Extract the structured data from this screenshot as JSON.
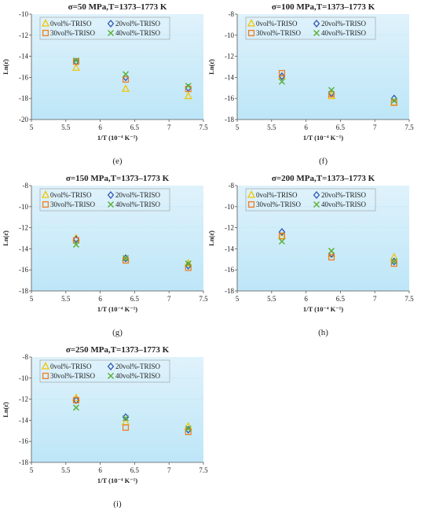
{
  "colors": {
    "series": [
      "#f2c500",
      "#2e55b8",
      "#ef7d22",
      "#5cb13b"
    ],
    "plot_bg_top": "#dff2fb",
    "plot_bg_bottom": "#bde6f8",
    "grid": "#c9e8f7"
  },
  "chart_data": [
    {
      "type": "scatter",
      "title": "σ=50 MPa,T=1373–1773 K",
      "xlabel": "1/T (10⁻⁴ K⁻¹)",
      "ylabel": "Ln(ε̇)",
      "xlim": [
        5,
        7.5
      ],
      "ylim": [
        -20,
        -10
      ],
      "xticks": [
        5,
        5.5,
        6,
        6.5,
        7,
        7.5
      ],
      "yticks": [
        -20,
        -18,
        -16,
        -14,
        -12,
        -10
      ],
      "legend_position": "top-left",
      "caption": "(e)",
      "series": [
        {
          "name": "0vol%-TRISO",
          "marker": "triangle",
          "x": [
            5.65,
            6.37,
            7.28
          ],
          "y": [
            -15.1,
            -17.1,
            -17.8
          ]
        },
        {
          "name": "20vol%-TRISO",
          "marker": "diamond",
          "x": [
            5.65,
            6.37,
            7.28
          ],
          "y": [
            -14.5,
            -16.0,
            -17.0
          ]
        },
        {
          "name": "30vol%-TRISO",
          "marker": "square",
          "x": [
            5.65,
            6.37,
            7.28
          ],
          "y": [
            -14.5,
            -16.2,
            -17.1
          ]
        },
        {
          "name": "40vol%-TRISO",
          "marker": "x",
          "x": [
            5.65,
            6.37,
            7.28
          ],
          "y": [
            -14.4,
            -15.7,
            -16.8
          ]
        }
      ]
    },
    {
      "type": "scatter",
      "title": "σ=100 MPa,T=1373–1773 K",
      "xlabel": "1/T (10⁻⁴ K⁻¹)",
      "ylabel": "Ln(ε̇)",
      "xlim": [
        5,
        7.5
      ],
      "ylim": [
        -18,
        -8
      ],
      "xticks": [
        5,
        5.5,
        6,
        6.5,
        7,
        7.5
      ],
      "yticks": [
        -18,
        -16,
        -14,
        -12,
        -10,
        -8
      ],
      "legend_position": "top-left",
      "caption": "(f)",
      "series": [
        {
          "name": "0vol%-TRISO",
          "marker": "triangle",
          "x": [
            5.65,
            6.37,
            7.28
          ],
          "y": [
            -13.9,
            -15.8,
            -16.4
          ]
        },
        {
          "name": "20vol%-TRISO",
          "marker": "diamond",
          "x": [
            5.65,
            6.37,
            7.28
          ],
          "y": [
            -13.9,
            -15.5,
            -16.0
          ]
        },
        {
          "name": "30vol%-TRISO",
          "marker": "square",
          "x": [
            5.65,
            6.37,
            7.28
          ],
          "y": [
            -13.6,
            -15.6,
            -16.4
          ]
        },
        {
          "name": "40vol%-TRISO",
          "marker": "x",
          "x": [
            5.65,
            6.37,
            7.28
          ],
          "y": [
            -14.4,
            -15.2,
            -16.2
          ]
        }
      ]
    },
    {
      "type": "scatter",
      "title": "σ=150 MPa,T=1373–1773 K",
      "xlabel": "1/T (10⁻⁴ K⁻¹)",
      "ylabel": "Ln(ε̇)",
      "xlim": [
        5,
        7.5
      ],
      "ylim": [
        -18,
        -8
      ],
      "xticks": [
        5,
        5.5,
        6,
        6.5,
        7,
        7.5
      ],
      "yticks": [
        -18,
        -16,
        -14,
        -12,
        -10,
        -8
      ],
      "legend_position": "top-left",
      "caption": "(g)",
      "series": [
        {
          "name": "0vol%-TRISO",
          "marker": "triangle",
          "x": [
            5.65,
            6.37,
            7.28
          ],
          "y": [
            -13.0,
            -14.9,
            -15.4
          ]
        },
        {
          "name": "20vol%-TRISO",
          "marker": "diamond",
          "x": [
            5.65,
            6.37,
            7.28
          ],
          "y": [
            -13.1,
            -14.9,
            -15.6
          ]
        },
        {
          "name": "30vol%-TRISO",
          "marker": "square",
          "x": [
            5.65,
            6.37,
            7.28
          ],
          "y": [
            -13.2,
            -15.1,
            -15.8
          ]
        },
        {
          "name": "40vol%-TRISO",
          "marker": "x",
          "x": [
            5.65,
            6.37,
            7.28
          ],
          "y": [
            -13.6,
            -14.9,
            -15.4
          ]
        }
      ]
    },
    {
      "type": "scatter",
      "title": "σ=200 MPa,T=1373–1773 K",
      "xlabel": "1/T (10⁻⁴ K⁻¹)",
      "ylabel": "Ln(ε̇)",
      "xlim": [
        5,
        7.5
      ],
      "ylim": [
        -18,
        -8
      ],
      "xticks": [
        5,
        5.5,
        6,
        6.5,
        7,
        7.5
      ],
      "yticks": [
        -18,
        -16,
        -14,
        -12,
        -10,
        -8
      ],
      "legend_position": "top-left",
      "caption": "(h)",
      "series": [
        {
          "name": "0vol%-TRISO",
          "marker": "triangle",
          "x": [
            5.65,
            6.37,
            7.28
          ],
          "y": [
            -12.8,
            -14.5,
            -14.8
          ]
        },
        {
          "name": "20vol%-TRISO",
          "marker": "diamond",
          "x": [
            5.65,
            6.37,
            7.28
          ],
          "y": [
            -12.4,
            -14.5,
            -15.2
          ]
        },
        {
          "name": "30vol%-TRISO",
          "marker": "square",
          "x": [
            5.65,
            6.37,
            7.28
          ],
          "y": [
            -12.8,
            -14.8,
            -15.4
          ]
        },
        {
          "name": "40vol%-TRISO",
          "marker": "x",
          "x": [
            5.65,
            6.37,
            7.28
          ],
          "y": [
            -13.3,
            -14.2,
            -15.2
          ]
        }
      ]
    },
    {
      "type": "scatter",
      "title": "σ=250 MPa,T=1373–1773 K",
      "xlabel": "1/T (10⁻⁴ K⁻¹)",
      "ylabel": "Ln(ε̇)",
      "xlim": [
        5,
        7.5
      ],
      "ylim": [
        -18,
        -8
      ],
      "xticks": [
        5,
        5.5,
        6,
        6.5,
        7,
        7.5
      ],
      "yticks": [
        -18,
        -16,
        -14,
        -12,
        -10,
        -8
      ],
      "legend_position": "top-left",
      "caption": "(i)",
      "series": [
        {
          "name": "0vol%-TRISO",
          "marker": "triangle",
          "x": [
            5.65,
            6.37,
            7.28
          ],
          "y": [
            -11.9,
            -14.2,
            -14.6
          ]
        },
        {
          "name": "20vol%-TRISO",
          "marker": "diamond",
          "x": [
            5.65,
            6.37,
            7.28
          ],
          "y": [
            -12.1,
            -13.7,
            -14.9
          ]
        },
        {
          "name": "30vol%-TRISO",
          "marker": "square",
          "x": [
            5.65,
            6.37,
            7.28
          ],
          "y": [
            -12.1,
            -14.7,
            -15.1
          ]
        },
        {
          "name": "40vol%-TRISO",
          "marker": "x",
          "x": [
            5.65,
            6.37,
            7.28
          ],
          "y": [
            -12.8,
            -13.8,
            -14.8
          ]
        }
      ]
    }
  ]
}
